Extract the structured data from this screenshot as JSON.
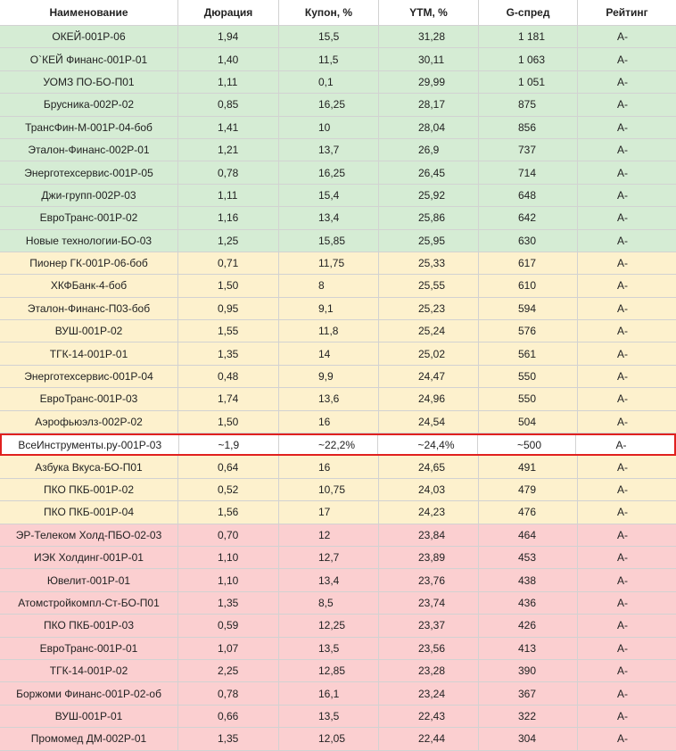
{
  "table": {
    "header": [
      "Наименование",
      "Дюрация",
      "Купон, %",
      "YTM, %",
      "G-спред",
      "Рейтинг"
    ],
    "sections": [
      {
        "color": "#d5ecd4",
        "rows": [
          [
            "ОКЕЙ-001Р-06",
            "1,94",
            "15,5",
            "31,28",
            "1 181",
            "А-"
          ],
          [
            "О`КЕЙ Финанс-001Р-01",
            "1,40",
            "11,5",
            "30,11",
            "1 063",
            "А-"
          ],
          [
            "УОМЗ ПО-БО-П01",
            "1,11",
            "0,1",
            "29,99",
            "1 051",
            "А-"
          ],
          [
            "Брусника-002Р-02",
            "0,85",
            "16,25",
            "28,17",
            "875",
            "А-"
          ],
          [
            "ТрансФин-М-001Р-04-боб",
            "1,41",
            "10",
            "28,04",
            "856",
            "А-"
          ],
          [
            "Эталон-Финанс-002Р-01",
            "1,21",
            "13,7",
            "26,9",
            "737",
            "А-"
          ],
          [
            "Энерготехсервис-001Р-05",
            "0,78",
            "16,25",
            "26,45",
            "714",
            "А-"
          ],
          [
            "Джи-групп-002Р-03",
            "1,11",
            "15,4",
            "25,92",
            "648",
            "А-"
          ],
          [
            "ЕвроТранс-001Р-02",
            "1,16",
            "13,4",
            "25,86",
            "642",
            "А-"
          ],
          [
            "Новые технологии-БО-03",
            "1,25",
            "15,85",
            "25,95",
            "630",
            "А-"
          ]
        ]
      },
      {
        "color": "#fdf1cd",
        "rows": [
          [
            "Пионер ГК-001Р-06-боб",
            "0,71",
            "11,75",
            "25,33",
            "617",
            "А-"
          ],
          [
            "ХКФБанк-4-боб",
            "1,50",
            "8",
            "25,55",
            "610",
            "А-"
          ],
          [
            "Эталон-Финанс-П03-боб",
            "0,95",
            "9,1",
            "25,23",
            "594",
            "А-"
          ],
          [
            "ВУШ-001Р-02",
            "1,55",
            "11,8",
            "25,24",
            "576",
            "А-"
          ],
          [
            "ТГК-14-001Р-01",
            "1,35",
            "14",
            "25,02",
            "561",
            "А-"
          ],
          [
            "Энерготехсервис-001Р-04",
            "0,48",
            "9,9",
            "24,47",
            "550",
            "А-"
          ],
          [
            "ЕвроТранс-001Р-03",
            "1,74",
            "13,6",
            "24,96",
            "550",
            "А-"
          ],
          [
            "Аэрофьюэлз-002Р-02",
            "1,50",
            "16",
            "24,54",
            "504",
            "А-"
          ]
        ]
      },
      {
        "color": "#ffffff",
        "border": "#e0201e",
        "rows": [
          [
            "ВсеИнструменты.ру-001Р-03",
            "~1,9",
            "~22,2%",
            "~24,4%",
            "~500",
            "А-"
          ]
        ]
      },
      {
        "color": "#fdf1cd",
        "rows": [
          [
            "Азбука Вкуса-БО-П01",
            "0,64",
            "16",
            "24,65",
            "491",
            "А-"
          ],
          [
            "ПКО ПКБ-001Р-02",
            "0,52",
            "10,75",
            "24,03",
            "479",
            "А-"
          ],
          [
            "ПКО ПКБ-001Р-04",
            "1,56",
            "17",
            "24,23",
            "476",
            "А-"
          ]
        ]
      },
      {
        "color": "#fbcfd0",
        "rows": [
          [
            "ЭР-Телеком Холд-ПБО-02-03",
            "0,70",
            "12",
            "23,84",
            "464",
            "А-"
          ],
          [
            "ИЭК Холдинг-001Р-01",
            "1,10",
            "12,7",
            "23,89",
            "453",
            "А-"
          ],
          [
            "Ювелит-001Р-01",
            "1,10",
            "13,4",
            "23,76",
            "438",
            "А-"
          ],
          [
            "Атомстройкомпл-Ст-БО-П01",
            "1,35",
            "8,5",
            "23,74",
            "436",
            "А-"
          ],
          [
            "ПКО ПКБ-001Р-03",
            "0,59",
            "12,25",
            "23,37",
            "426",
            "А-"
          ],
          [
            "ЕвроТранс-001Р-01",
            "1,07",
            "13,5",
            "23,56",
            "413",
            "А-"
          ],
          [
            "ТГК-14-001Р-02",
            "2,25",
            "12,85",
            "23,28",
            "390",
            "А-"
          ],
          [
            "Боржоми Финанс-001Р-02-об",
            "0,78",
            "16,1",
            "23,24",
            "367",
            "А-"
          ],
          [
            "ВУШ-001Р-01",
            "0,66",
            "13,5",
            "22,43",
            "322",
            "А-"
          ],
          [
            "Промомед ДМ-002Р-01",
            "1,35",
            "12,05",
            "22,44",
            "304",
            "А-"
          ]
        ]
      }
    ]
  }
}
